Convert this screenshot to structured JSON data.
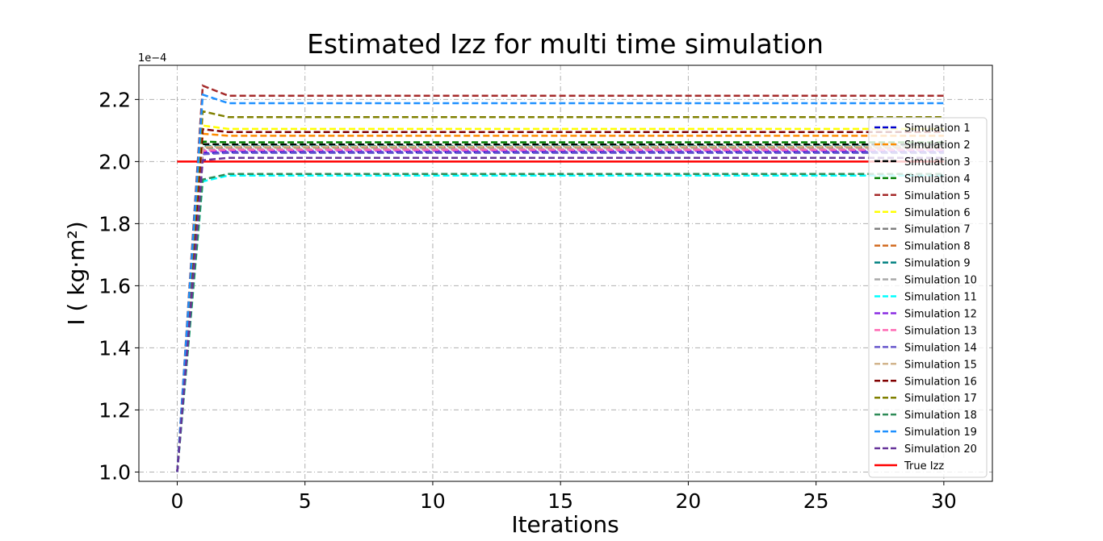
{
  "chart_data": {
    "type": "line",
    "title": "Estimated Izz for multi time simulation",
    "xlabel": "Iterations",
    "ylabel": "I ( kg·m²)",
    "y_offset_label": "1e−4",
    "xlim": [
      -1.5,
      31.9
    ],
    "ylim": [
      0.97,
      2.31
    ],
    "x_ticks": [
      0,
      5,
      10,
      15,
      20,
      25,
      30
    ],
    "x_tick_labels": [
      "0",
      "5",
      "10",
      "15",
      "20",
      "25",
      "30"
    ],
    "y_ticks": [
      1.0,
      1.2,
      1.4,
      1.6,
      1.8,
      2.0,
      2.2
    ],
    "y_tick_labels": [
      "1.0",
      "1.2",
      "1.4",
      "1.6",
      "1.8",
      "2.0",
      "2.2"
    ],
    "grid": true,
    "legend_position": "right",
    "x": [
      0,
      1,
      2,
      3,
      4,
      5,
      6,
      7,
      8,
      9,
      10,
      11,
      12,
      13,
      14,
      15,
      16,
      17,
      18,
      19,
      20,
      21,
      22,
      23,
      24,
      25,
      26,
      27,
      28,
      29,
      30
    ],
    "initial_value": 1.0,
    "series": [
      {
        "name": "Simulation 1",
        "color": "#0000cd",
        "final": 2.03
      },
      {
        "name": "Simulation 2",
        "color": "#ff8c00",
        "final": 2.083
      },
      {
        "name": "Simulation 3",
        "color": "#000000",
        "final": 2.055
      },
      {
        "name": "Simulation 4",
        "color": "#008000",
        "final": 2.062
      },
      {
        "name": "Simulation 5",
        "color": "#a52a2a",
        "final": 2.212
      },
      {
        "name": "Simulation 6",
        "color": "#ffff00",
        "final": 2.105
      },
      {
        "name": "Simulation 7",
        "color": "#808080",
        "final": 2.045
      },
      {
        "name": "Simulation 8",
        "color": "#d2691e",
        "final": 2.047
      },
      {
        "name": "Simulation 9",
        "color": "#008080",
        "final": 2.05
      },
      {
        "name": "Simulation 10",
        "color": "#a9a9a9",
        "final": 2.04
      },
      {
        "name": "Simulation 11",
        "color": "#00ffff",
        "final": 1.955
      },
      {
        "name": "Simulation 12",
        "color": "#8a2be2",
        "final": 2.035
      },
      {
        "name": "Simulation 13",
        "color": "#ff69b4",
        "final": 2.038
      },
      {
        "name": "Simulation 14",
        "color": "#6a5acd",
        "final": 2.028
      },
      {
        "name": "Simulation 15",
        "color": "#d2b48c",
        "final": 2.048
      },
      {
        "name": "Simulation 16",
        "color": "#800000",
        "final": 2.095
      },
      {
        "name": "Simulation 17",
        "color": "#808000",
        "final": 2.143
      },
      {
        "name": "Simulation 18",
        "color": "#2e8b57",
        "final": 1.96
      },
      {
        "name": "Simulation 19",
        "color": "#1e90ff",
        "final": 2.188
      },
      {
        "name": "Simulation 20",
        "color": "#663399",
        "final": 2.012
      }
    ],
    "reference": {
      "name": "True Izz",
      "color": "#ff0000",
      "value": 2.0
    }
  }
}
